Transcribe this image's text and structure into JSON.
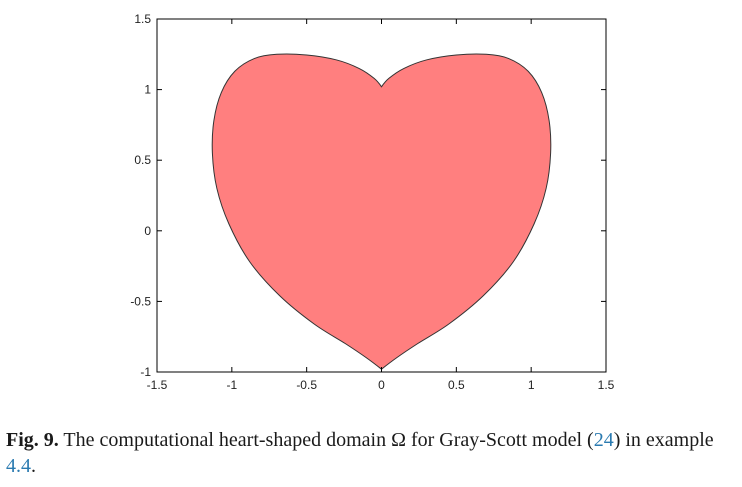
{
  "figure": {
    "caption": {
      "label": "Fig. 9.",
      "text_before_ref": "The computational heart-shaped domain Ω for Gray-Scott model (",
      "ref_model": "24",
      "text_after_ref": ") in example ",
      "ref_example": "4.4",
      "text_end": "."
    }
  },
  "chart_data": {
    "type": "area",
    "title": "",
    "xlabel": "",
    "ylabel": "",
    "xlim": [
      -1.5,
      1.5
    ],
    "ylim": [
      -1,
      1.5
    ],
    "xticks": [
      "-1.5",
      "-1",
      "-0.5",
      "0",
      "0.5",
      "1",
      "1.5"
    ],
    "yticks": [
      "-1",
      "-0.5",
      "0",
      "0.5",
      "1",
      "1.5"
    ],
    "grid": false,
    "fill_color": "#ff7f7f",
    "edge_color": "#333333",
    "shape": {
      "name": "heart",
      "top_notch": [
        0,
        1.02
      ],
      "bottom_tip": [
        0,
        -0.98
      ],
      "lobe_top_y": 1.25,
      "lobe_top_x": [
        -0.7,
        0.7
      ],
      "max_half_width": 1.13,
      "widest_y": 0.55,
      "outline_right_half": [
        [
          0.0,
          1.02
        ],
        [
          0.05,
          1.08
        ],
        [
          0.15,
          1.15
        ],
        [
          0.3,
          1.21
        ],
        [
          0.5,
          1.245
        ],
        [
          0.7,
          1.25
        ],
        [
          0.85,
          1.22
        ],
        [
          0.98,
          1.13
        ],
        [
          1.07,
          0.98
        ],
        [
          1.12,
          0.78
        ],
        [
          1.13,
          0.55
        ],
        [
          1.1,
          0.3
        ],
        [
          1.02,
          0.05
        ],
        [
          0.88,
          -0.22
        ],
        [
          0.68,
          -0.46
        ],
        [
          0.45,
          -0.66
        ],
        [
          0.24,
          -0.8
        ],
        [
          0.1,
          -0.9
        ],
        [
          0.0,
          -0.98
        ]
      ]
    }
  }
}
